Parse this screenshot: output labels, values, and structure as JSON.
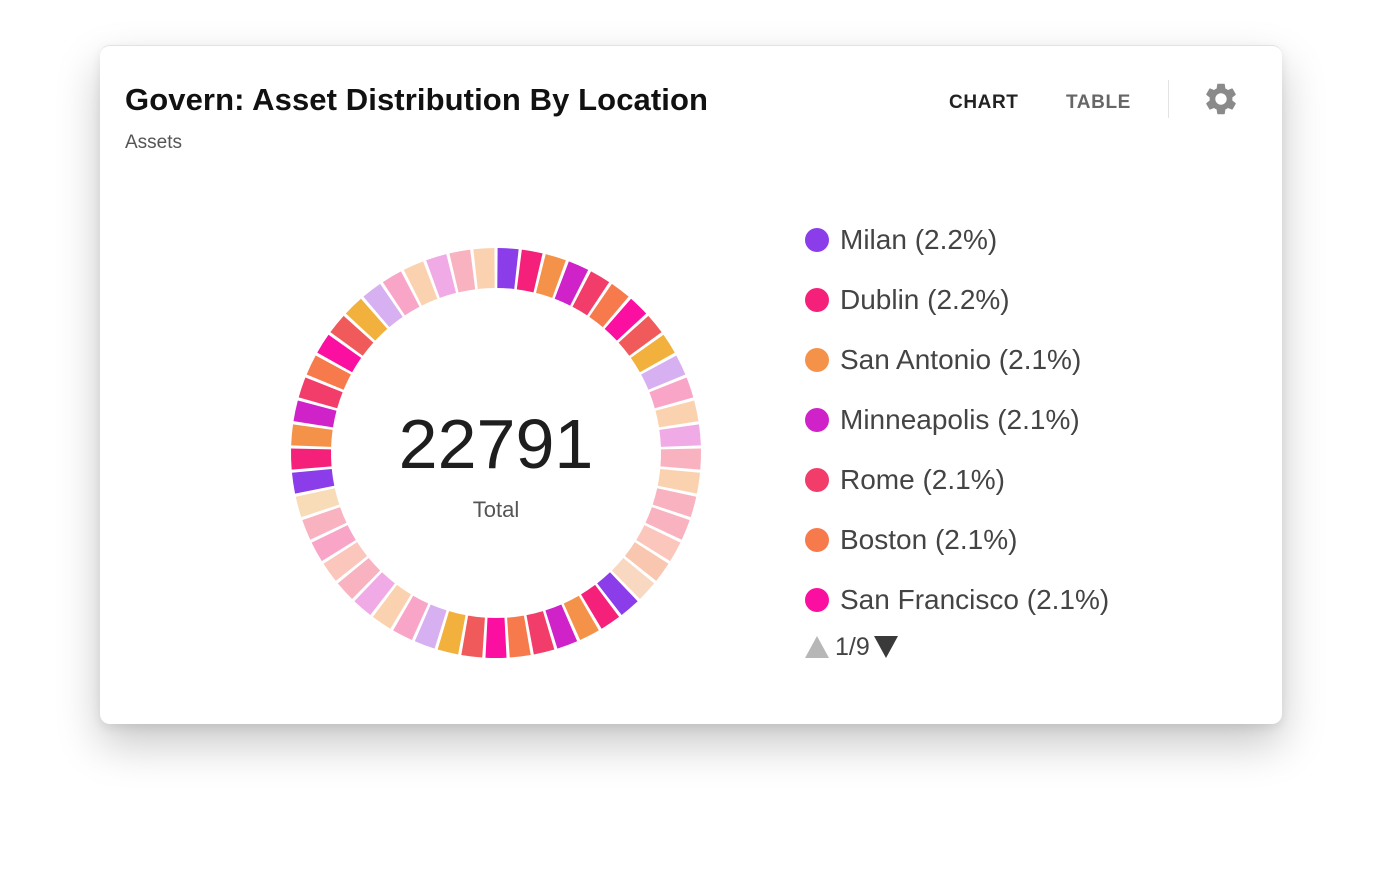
{
  "widget": {
    "title": "Govern: Asset Distribution By Location",
    "subtitle": "Assets",
    "tabs": [
      {
        "label": "CHART",
        "active": true
      },
      {
        "label": "TABLE",
        "active": false
      }
    ],
    "settings_icon": "gear-icon"
  },
  "center": {
    "total_value": "22791",
    "total_label": "Total"
  },
  "legend": {
    "items": [
      {
        "label": "Milan (2.2%)",
        "color": "#8b3dea"
      },
      {
        "label": "Dublin (2.2%)",
        "color": "#f5207a"
      },
      {
        "label": "San Antonio (2.1%)",
        "color": "#f5924a"
      },
      {
        "label": "Minneapolis (2.1%)",
        "color": "#cf22c9"
      },
      {
        "label": "Rome (2.1%)",
        "color": "#f23d6b"
      },
      {
        "label": "Boston (2.1%)",
        "color": "#f77a4d"
      },
      {
        "label": "San Francisco (2.1%)",
        "color": "#fb0fa0"
      }
    ],
    "pager": {
      "text": "1/9",
      "up_icon": "triangle-up-icon",
      "down_icon": "triangle-down-icon"
    }
  },
  "chart_data": {
    "type": "pie",
    "total": 22791,
    "center_label": "Total",
    "visible_page": "1/9",
    "slices": [
      {
        "name": "Milan",
        "percent": 2.2
      },
      {
        "name": "Dublin",
        "percent": 2.2
      },
      {
        "name": "San Antonio",
        "percent": 2.1
      },
      {
        "name": "Minneapolis",
        "percent": 2.1
      },
      {
        "name": "Rome",
        "percent": 2.1
      },
      {
        "name": "Boston",
        "percent": 2.1
      },
      {
        "name": "San Francisco",
        "percent": 2.1
      }
    ],
    "ring_colors": [
      "#8b3dea",
      "#f5207a",
      "#f5924a",
      "#cf22c9",
      "#f23d6b",
      "#f77a4d",
      "#fb0fa0",
      "#f05a5a",
      "#f2b13c",
      "#d7b0f2",
      "#f9a5c8",
      "#fbd2b0",
      "#f0abe6",
      "#f9b2c0",
      "#fbd2b0",
      "#f9b2c0",
      "#f9b2c0",
      "#fbc6bc",
      "#f9c6b0",
      "#f8d8c0",
      "#8b3dea",
      "#f5207a",
      "#f5924a",
      "#cf22c9",
      "#f23d6b",
      "#f77a4d",
      "#fb0fa0",
      "#f05a5a",
      "#f2b13c",
      "#d7b0f2",
      "#f9a5c8",
      "#fbd2b0",
      "#f0abe6",
      "#f9b2c0",
      "#fbc6bc",
      "#f9a5c8",
      "#f9b2c0",
      "#f8dcb8",
      "#8b3dea",
      "#f5207a",
      "#f5924a",
      "#cf22c9",
      "#f23d6b",
      "#f77a4d",
      "#fb0fa0",
      "#f05a5a",
      "#f2b13c",
      "#d7b0f2",
      "#f9a5c8",
      "#fbd2b0",
      "#f0abe6",
      "#f9b2c0",
      "#fbd2b0"
    ]
  }
}
